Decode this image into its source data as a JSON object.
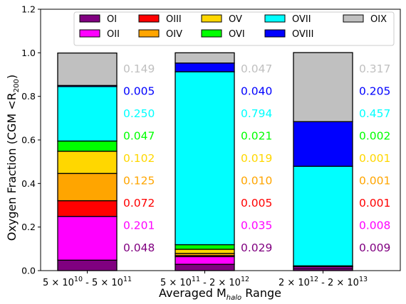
{
  "chart_data": {
    "type": "bar",
    "stacked": true,
    "categories": [
      {
        "pre": "5 × 10",
        "e1": "10",
        "mid": " - 5 × 10",
        "e2": "11"
      },
      {
        "pre": "5 × 10",
        "e1": "11",
        "mid": " - 2 × 10",
        "e2": "12"
      },
      {
        "pre": "2 × 10",
        "e1": "12",
        "mid": " - 2 × 10",
        "e2": "13"
      }
    ],
    "xlabel": {
      "main": "Averaged M",
      "sub": "halo",
      "tail": " Range"
    },
    "ylabel": {
      "main": "Oxygen Fraction (CGM <R",
      "sub": "200",
      "tail": ")"
    },
    "ylim": [
      0,
      1.2
    ],
    "yticks": [
      "0.0",
      "0.2",
      "0.4",
      "0.6",
      "0.8",
      "1.0",
      "1.2"
    ],
    "series": [
      {
        "name": "OI",
        "color": "#800080",
        "values": [
          0.048,
          0.029,
          0.009
        ]
      },
      {
        "name": "OII",
        "color": "#ff00ff",
        "values": [
          0.201,
          0.035,
          0.008
        ]
      },
      {
        "name": "OIII",
        "color": "#ff0000",
        "values": [
          0.072,
          0.005,
          0.001
        ]
      },
      {
        "name": "OIV",
        "color": "#ffa500",
        "values": [
          0.125,
          0.01,
          0.001
        ]
      },
      {
        "name": "OV",
        "color": "#ffd700",
        "values": [
          0.102,
          0.019,
          0.001
        ]
      },
      {
        "name": "OVI",
        "color": "#00ff00",
        "values": [
          0.047,
          0.021,
          0.002
        ]
      },
      {
        "name": "OVII",
        "color": "#00ffff",
        "values": [
          0.25,
          0.794,
          0.457
        ]
      },
      {
        "name": "OVIII",
        "color": "#0000ff",
        "values": [
          0.005,
          0.04,
          0.205
        ]
      },
      {
        "name": "OIX",
        "color": "#c0c0c0",
        "values": [
          0.149,
          0.047,
          0.317
        ]
      }
    ],
    "value_labels": [
      [
        "0.048",
        "0.201",
        "0.072",
        "0.125",
        "0.102",
        "0.047",
        "0.250",
        "0.005",
        "0.149"
      ],
      [
        "0.029",
        "0.035",
        "0.005",
        "0.010",
        "0.019",
        "0.021",
        "0.794",
        "0.040",
        "0.047"
      ],
      [
        "0.009",
        "0.008",
        "0.001",
        "0.001",
        "0.001",
        "0.002",
        "0.457",
        "0.205",
        "0.317"
      ]
    ],
    "legend": {
      "placement": "top",
      "columns": [
        [
          "OI",
          "OII"
        ],
        [
          "OIII",
          "OIV"
        ],
        [
          "OV",
          "OVI"
        ],
        [
          "OVII",
          "OVIII"
        ],
        [
          "OIX"
        ]
      ]
    },
    "grid": false
  }
}
